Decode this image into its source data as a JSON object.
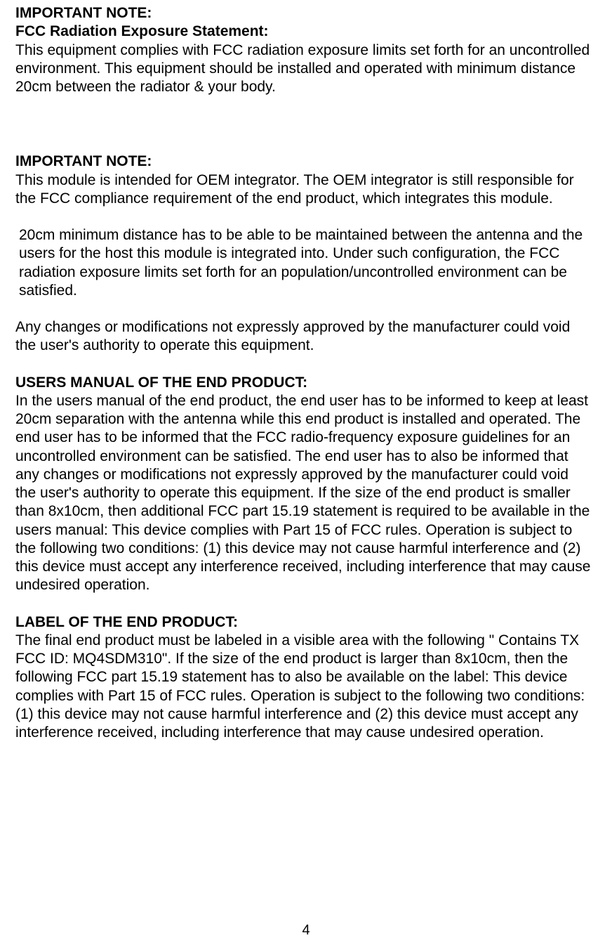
{
  "doc": {
    "text_color": "#000000",
    "background_color": "#ffffff",
    "font_family": "Arial",
    "font_size_pt": 16,
    "page_number": "4",
    "sections": {
      "note1_heading1": "IMPORTANT NOTE:",
      "note1_heading2": "FCC Radiation Exposure Statement:",
      "note1_body": "This equipment complies with FCC radiation exposure limits set forth for an uncontrolled environment. This equipment should be installed and operated with minimum distance 20cm between the radiator & your body.",
      "note2_heading": "IMPORTANT NOTE:",
      "note2_p1": "This module is intended for OEM integrator. The OEM integrator is still responsible for the FCC compliance requirement of the end product, which integrates this module.",
      "note2_p2": "20cm minimum distance has to be able to be maintained between the antenna and the users for the host this module is integrated into. Under such configuration, the FCC radiation exposure limits set forth for an population/uncontrolled environment can be satisfied.",
      "note2_p3": "Any changes or modifications not expressly approved by the manufacturer could void the user's authority to operate this equipment.",
      "users_manual_heading": "USERS MANUAL OF THE END PRODUCT:",
      "users_manual_body": "In the users manual of the end product, the end user has to be informed to keep at least 20cm separation with the antenna while this end product is installed and operated. The end user has to be informed that the FCC radio-frequency exposure guidelines for an uncontrolled environment can be satisfied. The end user has to also be informed that any changes or modifications not expressly approved by the manufacturer could void the user's authority to operate this equipment. If the size of the end product is smaller than 8x10cm, then additional FCC part 15.19 statement is required to be available in the users manual: This device complies with Part 15 of FCC rules. Operation is subject to the following two conditions: (1) this device may not cause harmful interference and (2) this device must accept any interference received, including interference that may cause undesired operation.",
      "label_heading": "LABEL OF THE END PRODUCT:",
      "label_body": "The final end product must be labeled in a visible area with the following \" Contains TX FCC ID: MQ4SDM310\". If the size of the end product is larger than 8x10cm, then the following FCC part 15.19 statement has to also be available on the label:  This device complies with Part 15 of FCC rules. Operation is subject to the following two conditions: (1) this device may not cause harmful interference and (2) this device must accept any interference received, including interference that may cause undesired operation."
    }
  }
}
